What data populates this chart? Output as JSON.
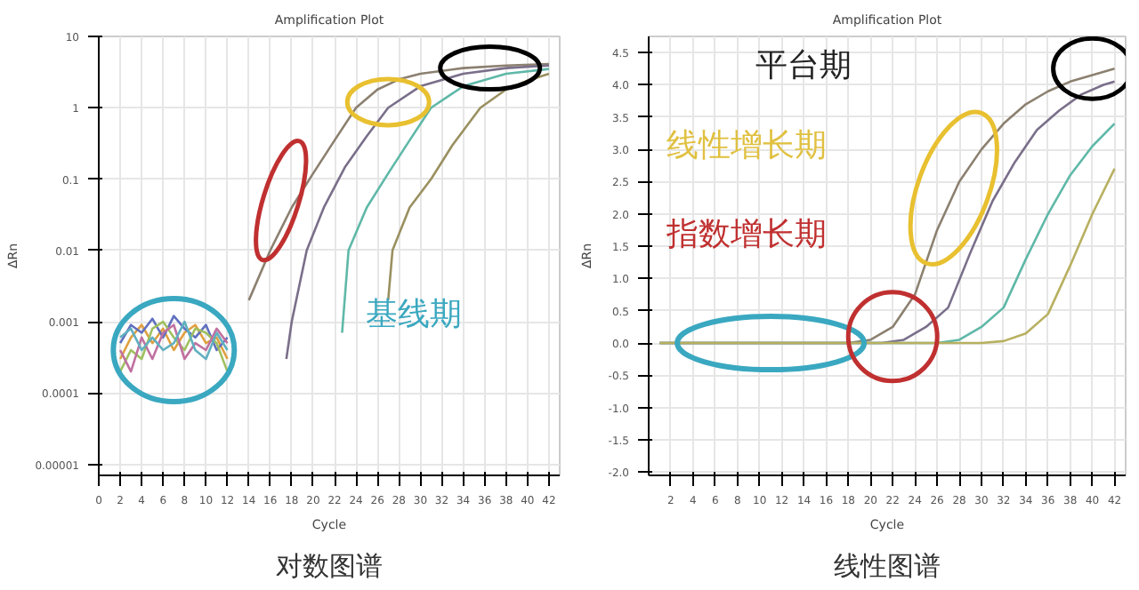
{
  "chart_data": [
    {
      "type": "line",
      "title": "Amplification Plot",
      "xlabel": "Cycle",
      "ylabel": "ΔRn",
      "log": "y",
      "grid": true,
      "marker": "none",
      "line_style": "solid",
      "xlim": [
        0,
        43
      ],
      "xticks": [
        0,
        2,
        4,
        6,
        8,
        10,
        12,
        14,
        16,
        18,
        20,
        22,
        24,
        26,
        28,
        30,
        32,
        34,
        36,
        38,
        40,
        42
      ],
      "ylim": [
        7e-06,
        10
      ],
      "yticks": [
        {
          "value": 1e-05,
          "label": "0.00001"
        },
        0.0001,
        0.001,
        0.01,
        0.1,
        1,
        10
      ],
      "annotations": [
        "基线期",
        "对数图谱"
      ],
      "series": [
        {
          "color": "#8c8070",
          "x": [
            14,
            16,
            18,
            20,
            22,
            24,
            26,
            28,
            30,
            34,
            38,
            42
          ],
          "values": [
            0.002,
            0.01,
            0.04,
            0.12,
            0.35,
            1.0,
            1.8,
            2.5,
            3.0,
            3.6,
            3.9,
            4.1
          ]
        },
        {
          "color": "#7a6f8a",
          "x": [
            17.5,
            18,
            19.4,
            21,
            23,
            25,
            27,
            30,
            34,
            38,
            42
          ],
          "values": [
            0.0003,
            0.001,
            0.01,
            0.04,
            0.15,
            0.4,
            1.0,
            2.0,
            3.0,
            3.6,
            3.9
          ]
        },
        {
          "color": "#5fb8a8",
          "x": [
            22.7,
            23.3,
            25,
            27,
            29,
            31,
            34,
            38,
            42
          ],
          "values": [
            0.0007,
            0.01,
            0.04,
            0.12,
            0.35,
            1.0,
            2.0,
            3.0,
            3.5
          ]
        },
        {
          "color": "#9a9060",
          "x": [
            27,
            27.4,
            29,
            31,
            33,
            35.6,
            38,
            40,
            42
          ],
          "values": [
            0.002,
            0.01,
            0.04,
            0.1,
            0.3,
            1.0,
            1.8,
            2.4,
            3.0
          ]
        },
        {
          "color": "#e0a040",
          "x": [
            2,
            3,
            4,
            5,
            6,
            7,
            8,
            9,
            10,
            11,
            12
          ],
          "values": [
            0.0003,
            0.0006,
            0.0009,
            0.0005,
            0.0008,
            0.0004,
            0.0007,
            0.0009,
            0.0005,
            0.0006,
            0.0003
          ]
        },
        {
          "color": "#6070c0",
          "x": [
            2,
            3,
            4,
            5,
            6,
            7,
            8,
            9,
            10,
            11,
            12
          ],
          "values": [
            0.0005,
            0.0009,
            0.0007,
            0.0011,
            0.0006,
            0.0012,
            0.0008,
            0.0006,
            0.0009,
            0.0004,
            0.0006
          ]
        },
        {
          "color": "#a0c060",
          "x": [
            2,
            3,
            4,
            5,
            6,
            7,
            8,
            9,
            10,
            11,
            12
          ],
          "values": [
            0.0002,
            0.0004,
            0.0003,
            0.0008,
            0.001,
            0.0006,
            0.0004,
            0.0008,
            0.0007,
            0.0005,
            0.0002
          ]
        },
        {
          "color": "#c070a0",
          "x": [
            2,
            3,
            4,
            5,
            6,
            7,
            8,
            9,
            10,
            11,
            12
          ],
          "values": [
            0.0004,
            0.0002,
            0.0006,
            0.0003,
            0.0007,
            0.0009,
            0.0003,
            0.0005,
            0.0004,
            0.0008,
            0.0005
          ]
        },
        {
          "color": "#60b0c0",
          "x": [
            2,
            3,
            4,
            5,
            6,
            7,
            8,
            9,
            10,
            11,
            12
          ],
          "values": [
            0.0006,
            0.0008,
            0.0004,
            0.0006,
            0.0004,
            0.0005,
            0.001,
            0.0004,
            0.0003,
            0.0007,
            0.0004
          ]
        }
      ]
    },
    {
      "type": "line",
      "title": "Amplification Plot",
      "xlabel": "Cycle",
      "ylabel": "ΔRn",
      "grid": true,
      "marker": "none",
      "line_style": "solid",
      "xlim": [
        0,
        43
      ],
      "xticks": [
        2,
        4,
        6,
        8,
        10,
        12,
        14,
        16,
        18,
        20,
        22,
        24,
        26,
        28,
        30,
        32,
        34,
        36,
        38,
        40,
        42
      ],
      "ylim": [
        -2.05,
        4.75
      ],
      "yticks": [
        {
          "value": -2,
          "label": "-2.0"
        },
        -1.5,
        {
          "value": -1,
          "label": "-1.0"
        },
        -0.5,
        {
          "value": 0,
          "label": "0.0"
        },
        0.5,
        {
          "value": 1,
          "label": "1.0"
        },
        1.5,
        {
          "value": 2,
          "label": "2.0"
        },
        2.5,
        {
          "value": 3,
          "label": "3.0"
        },
        3.5,
        {
          "value": 4,
          "label": "4.0"
        },
        4.5
      ],
      "annotations": [
        "平台期",
        "线性增长期",
        "指数增长期",
        "线性图谱"
      ],
      "series": [
        {
          "color": "#8c8070",
          "x": [
            1,
            18,
            20,
            22,
            24,
            26,
            28,
            30,
            32,
            34,
            36,
            38,
            40,
            42
          ],
          "values": [
            0,
            0,
            0.05,
            0.25,
            0.75,
            1.75,
            2.5,
            3.0,
            3.4,
            3.7,
            3.9,
            4.05,
            4.15,
            4.25
          ]
        },
        {
          "color": "#7a6f8a",
          "x": [
            1,
            21,
            23,
            25,
            27,
            29,
            31,
            33,
            35,
            37,
            39,
            41,
            42
          ],
          "values": [
            0,
            0,
            0.05,
            0.25,
            0.55,
            1.4,
            2.2,
            2.8,
            3.3,
            3.6,
            3.85,
            4.0,
            4.05
          ]
        },
        {
          "color": "#5fb8a8",
          "x": [
            1,
            26,
            28,
            30,
            32,
            34,
            36,
            38,
            40,
            42
          ],
          "values": [
            0,
            0,
            0.05,
            0.25,
            0.55,
            1.3,
            2.0,
            2.6,
            3.05,
            3.4
          ]
        },
        {
          "color": "#b8b060",
          "x": [
            1,
            30,
            32,
            34,
            36,
            38,
            40,
            42
          ],
          "values": [
            0,
            0,
            0.03,
            0.15,
            0.45,
            1.2,
            2.0,
            2.7
          ]
        }
      ]
    }
  ]
}
